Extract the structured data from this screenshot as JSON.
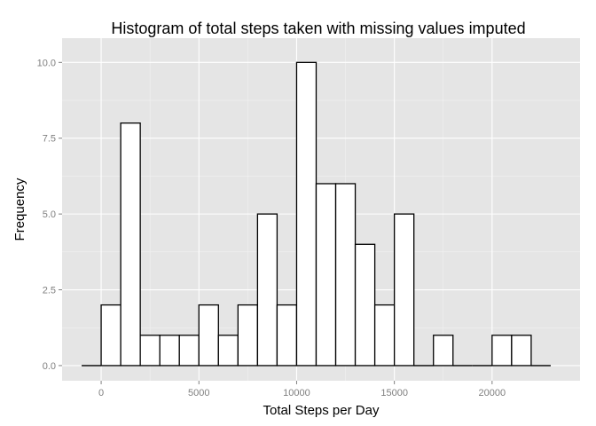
{
  "chart_data": {
    "type": "bar",
    "title": "Histogram of total steps taken with missing values imputed",
    "xlabel": "Total Steps per Day",
    "ylabel": "Frequency",
    "bin_width": 1000,
    "x_range": [
      -2000,
      24500
    ],
    "ylim": [
      -0.5,
      10.8
    ],
    "x_ticks": [
      0,
      5000,
      10000,
      15000,
      20000
    ],
    "x_tick_labels": [
      "0",
      "5000",
      "10000",
      "15000",
      "20000"
    ],
    "y_ticks": [
      0,
      2.5,
      5,
      7.5,
      10
    ],
    "y_tick_labels": [
      "0.0",
      "2.5",
      "5.0",
      "7.5",
      "10.0"
    ],
    "grid": true,
    "bins": [
      {
        "x": -500,
        "count": 0
      },
      {
        "x": 500,
        "count": 2
      },
      {
        "x": 1500,
        "count": 8
      },
      {
        "x": 2500,
        "count": 1
      },
      {
        "x": 3500,
        "count": 1
      },
      {
        "x": 4500,
        "count": 1
      },
      {
        "x": 5500,
        "count": 2
      },
      {
        "x": 6500,
        "count": 1
      },
      {
        "x": 7500,
        "count": 2
      },
      {
        "x": 8500,
        "count": 5
      },
      {
        "x": 9500,
        "count": 2
      },
      {
        "x": 10500,
        "count": 10
      },
      {
        "x": 11500,
        "count": 6
      },
      {
        "x": 12500,
        "count": 6
      },
      {
        "x": 13500,
        "count": 4
      },
      {
        "x": 14500,
        "count": 2
      },
      {
        "x": 15500,
        "count": 5
      },
      {
        "x": 16500,
        "count": 0
      },
      {
        "x": 17500,
        "count": 1
      },
      {
        "x": 18500,
        "count": 0
      },
      {
        "x": 19500,
        "count": 0
      },
      {
        "x": 20500,
        "count": 1
      },
      {
        "x": 21500,
        "count": 1
      },
      {
        "x": 22500,
        "count": 0
      }
    ]
  }
}
